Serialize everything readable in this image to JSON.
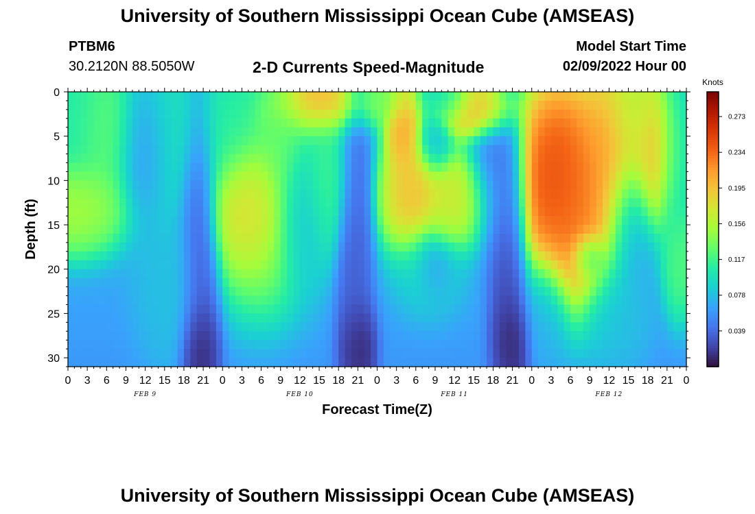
{
  "header": {
    "title": "University of Southern Mississippi Ocean Cube (AMSEAS)",
    "station_id": "PTBM6",
    "coordinates": "30.2120N  88.5050W",
    "product": "2-D Currents Speed-Magnitude",
    "model_start_label": "Model Start Time",
    "model_start_value": "02/09/2022 Hour 00"
  },
  "footer": {
    "title": "University of Southern Mississippi Ocean Cube (AMSEAS)"
  },
  "colors": {
    "scale": [
      "#30123b",
      "#4145ab",
      "#4675ed",
      "#39a2fc",
      "#1bcfd4",
      "#24eca6",
      "#61fc6c",
      "#a4fc3b",
      "#d1e834",
      "#f3c63a",
      "#fe9b2d",
      "#f36315",
      "#d93806",
      "#b11901",
      "#7a0403"
    ]
  },
  "chart_data": {
    "type": "heatmap",
    "title": "2-D Currents Speed-Magnitude",
    "xlabel": "Forecast Time(Z)",
    "ylabel": "Depth (ft)",
    "x_tick_labels": [
      "0",
      "3",
      "6",
      "9",
      "12",
      "15",
      "18",
      "21",
      "0",
      "3",
      "6",
      "9",
      "12",
      "15",
      "18",
      "21",
      "0",
      "3",
      "6",
      "9",
      "12",
      "15",
      "18",
      "21",
      "0",
      "3",
      "6",
      "9",
      "12",
      "15",
      "18",
      "21",
      "0"
    ],
    "x_range_hours": [
      0,
      96
    ],
    "date_labels": [
      {
        "label": "FEB 9",
        "hour": 12
      },
      {
        "label": "FEB 10",
        "hour": 36
      },
      {
        "label": "FEB 11",
        "hour": 60
      },
      {
        "label": "FEB 12",
        "hour": 84
      }
    ],
    "y_ticks": [
      0,
      5,
      10,
      15,
      20,
      25,
      30
    ],
    "y_range_ft": [
      0,
      31
    ],
    "y_inverted": true,
    "colorbar": {
      "unit": "Knots",
      "ticks": [
        "0.273",
        "0.234",
        "0.195",
        "0.156",
        "0.117",
        "0.078",
        "0.039"
      ],
      "tick_values": [
        0.273,
        0.234,
        0.195,
        0.156,
        0.117,
        0.078,
        0.039
      ],
      "range": [
        0,
        0.3
      ]
    },
    "z_units": "Knots",
    "features": [
      {
        "hour": 1,
        "depth": 2,
        "sh": 3,
        "sd": 6,
        "speed": 0.11
      },
      {
        "hour": 1,
        "depth": 13,
        "sh": 6,
        "sd": 4,
        "speed": 0.16
      },
      {
        "hour": 6,
        "depth": 4,
        "sh": 4,
        "sd": 6,
        "speed": 0.13
      },
      {
        "hour": 12,
        "depth": 6,
        "sh": 3,
        "sd": 6,
        "speed": 0.05
      },
      {
        "hour": 15,
        "depth": 4,
        "sh": 4,
        "sd": 8,
        "speed": 0.1
      },
      {
        "hour": 16,
        "depth": 22,
        "sh": 4,
        "sd": 7,
        "speed": 0.08
      },
      {
        "hour": 20.5,
        "depth": 20,
        "sh": 2.2,
        "sd": 14,
        "speed": 0.02
      },
      {
        "hour": 20.5,
        "depth": 29,
        "sh": 2,
        "sd": 4,
        "speed": 0.0
      },
      {
        "hour": 25,
        "depth": 4,
        "sh": 4,
        "sd": 6,
        "speed": 0.11
      },
      {
        "hour": 28,
        "depth": 13.5,
        "sh": 4,
        "sd": 5,
        "speed": 0.21
      },
      {
        "hour": 30,
        "depth": 14,
        "sh": 6,
        "sd": 8,
        "speed": 0.15
      },
      {
        "hour": 33,
        "depth": 5,
        "sh": 3,
        "sd": 5,
        "speed": 0.13
      },
      {
        "hour": 36,
        "depth": 14,
        "sh": 3,
        "sd": 6,
        "speed": 0.07
      },
      {
        "hour": 38,
        "depth": 2,
        "sh": 6,
        "sd": 2.5,
        "speed": 0.16
      },
      {
        "hour": 39,
        "depth": 1,
        "sh": 4,
        "sd": 2,
        "speed": 0.24
      },
      {
        "hour": 40,
        "depth": 10,
        "sh": 3,
        "sd": 6,
        "speed": 0.12
      },
      {
        "hour": 44.5,
        "depth": 18,
        "sh": 2,
        "sd": 14,
        "speed": 0.03
      },
      {
        "hour": 45,
        "depth": 29,
        "sh": 2,
        "sd": 4,
        "speed": 0.0
      },
      {
        "hour": 49,
        "depth": 1,
        "sh": 3,
        "sd": 2,
        "speed": 0.14
      },
      {
        "hour": 52,
        "depth": 4,
        "sh": 2,
        "sd": 4,
        "speed": 0.22
      },
      {
        "hour": 54,
        "depth": 12,
        "sh": 4,
        "sd": 5,
        "speed": 0.21
      },
      {
        "hour": 56,
        "depth": 20,
        "sh": 4,
        "sd": 4,
        "speed": 0.09
      },
      {
        "hour": 57,
        "depth": 6,
        "sh": 2,
        "sd": 3,
        "speed": 0.07
      },
      {
        "hour": 57,
        "depth": 19,
        "sh": 2,
        "sd": 3,
        "speed": 0.05
      },
      {
        "hour": 58,
        "depth": 14,
        "sh": 2,
        "sd": 3,
        "speed": 0.16
      },
      {
        "hour": 59,
        "depth": 1,
        "sh": 3,
        "sd": 2,
        "speed": 0.08
      },
      {
        "hour": 61,
        "depth": 12,
        "sh": 4,
        "sd": 4,
        "speed": 0.18
      },
      {
        "hour": 63,
        "depth": 2,
        "sh": 5,
        "sd": 2.5,
        "speed": 0.22
      },
      {
        "hour": 66,
        "depth": 10,
        "sh": 3,
        "sd": 6,
        "speed": 0.04
      },
      {
        "hour": 68.5,
        "depth": 20,
        "sh": 2.2,
        "sd": 14,
        "speed": 0.02
      },
      {
        "hour": 69,
        "depth": 28,
        "sh": 2,
        "sd": 4,
        "speed": 0.0
      },
      {
        "hour": 76,
        "depth": 10,
        "sh": 5,
        "sd": 8,
        "speed": 0.27
      },
      {
        "hour": 79,
        "depth": 14,
        "sh": 5,
        "sd": 8,
        "speed": 0.23
      },
      {
        "hour": 81,
        "depth": 18.5,
        "sh": 2,
        "sd": 2,
        "speed": 0.08
      },
      {
        "hour": 84,
        "depth": 8,
        "sh": 4,
        "sd": 8,
        "speed": 0.22
      },
      {
        "hour": 87,
        "depth": 15,
        "sh": 3,
        "sd": 6,
        "speed": 0.06
      },
      {
        "hour": 88,
        "depth": 3,
        "sh": 3,
        "sd": 4,
        "speed": 0.16
      },
      {
        "hour": 91,
        "depth": 7,
        "sh": 3,
        "sd": 6,
        "speed": 0.21
      },
      {
        "hour": 94,
        "depth": 8,
        "sh": 2,
        "sd": 8,
        "speed": 0.1
      },
      {
        "hour": 95,
        "depth": 19,
        "sh": 2,
        "sd": 5,
        "speed": 0.13
      },
      {
        "hour": 74,
        "depth": 25,
        "sh": 3,
        "sd": 5,
        "speed": 0.07
      },
      {
        "hour": 85,
        "depth": 25,
        "sh": 4,
        "sd": 5,
        "speed": 0.08
      }
    ],
    "background_speed_surface": 0.08,
    "background_speed_bottom": 0.06
  }
}
